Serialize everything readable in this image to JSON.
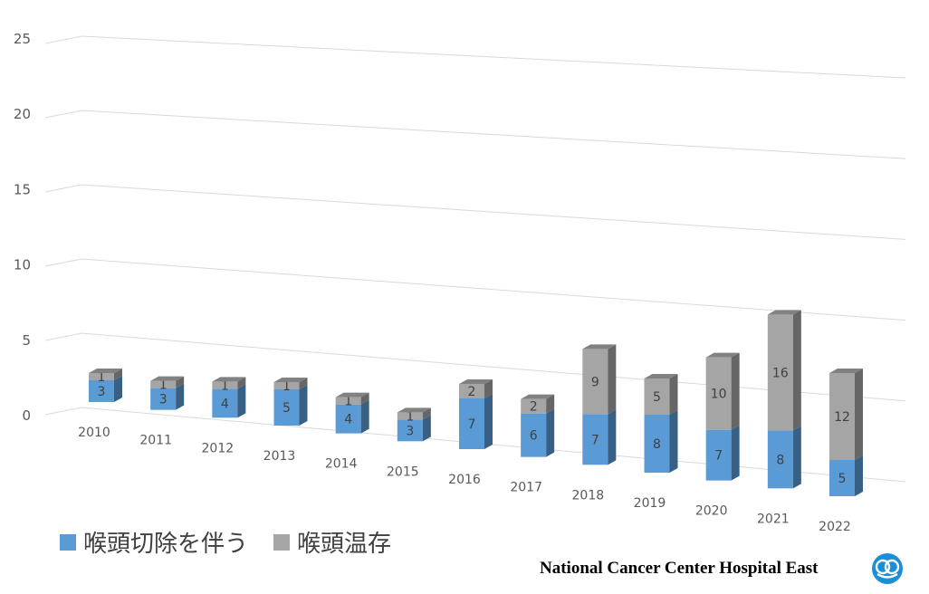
{
  "chart_data": {
    "type": "bar",
    "stacked": true,
    "three_d": true,
    "categories": [
      "2010",
      "2011",
      "2012",
      "2013",
      "2014",
      "2015",
      "2016",
      "2017",
      "2018",
      "2019",
      "2020",
      "2021",
      "2022"
    ],
    "series": [
      {
        "name": "喉頭切除を伴う",
        "color": "#5b9bd5",
        "values": [
          3,
          3,
          4,
          5,
          4,
          3,
          7,
          6,
          7,
          8,
          7,
          8,
          5
        ]
      },
      {
        "name": "喉頭温存",
        "color": "#a5a5a5",
        "values": [
          1,
          1,
          1,
          1,
          1,
          1,
          2,
          2,
          9,
          5,
          10,
          16,
          12
        ]
      }
    ],
    "y_ticks": [
      "0",
      "5",
      "10",
      "15",
      "20",
      "25"
    ],
    "ylim": [
      0,
      25
    ],
    "grid": true,
    "legend_position": "bottom-left"
  },
  "footer": {
    "text": "National Cancer Center Hospital East",
    "logo_icon": "ncc-logo-icon"
  },
  "colors": {
    "axis_text": "#595959",
    "grid": "#d9d9d9"
  }
}
